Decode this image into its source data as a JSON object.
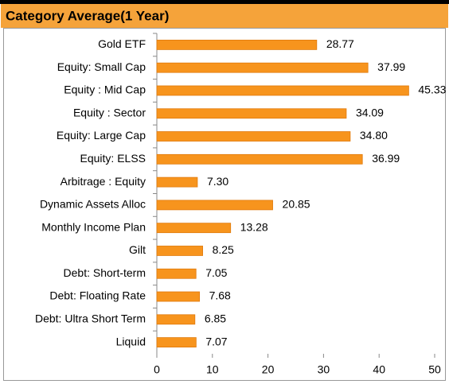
{
  "chart_data": {
    "type": "barh",
    "title": "Category Average(1 Year)",
    "categories": [
      "Gold ETF",
      "Equity: Small Cap",
      "Equity : Mid Cap",
      "Equity : Sector",
      "Equity: Large Cap",
      "Equity: ELSS",
      "Arbitrage : Equity",
      "Dynamic Assets Alloc",
      "Monthly Income Plan",
      "Gilt",
      "Debt: Short-term",
      "Debt: Floating Rate",
      "Debt: Ultra Short Term",
      "Liquid"
    ],
    "values": [
      28.77,
      37.99,
      45.33,
      34.09,
      34.8,
      36.99,
      7.3,
      20.85,
      13.28,
      8.25,
      7.05,
      7.68,
      6.85,
      7.07
    ],
    "value_labels": [
      "28.77",
      "37.99",
      "45.33",
      "34.09",
      "34.80",
      "36.99",
      "7.30",
      "20.85",
      "13.28",
      "8.25",
      "7.05",
      "7.68",
      "6.85",
      "7.07"
    ],
    "color": "#f7941d",
    "xlim": [
      0,
      50
    ],
    "xticks": [
      0,
      10,
      20,
      30,
      40,
      50
    ]
  }
}
